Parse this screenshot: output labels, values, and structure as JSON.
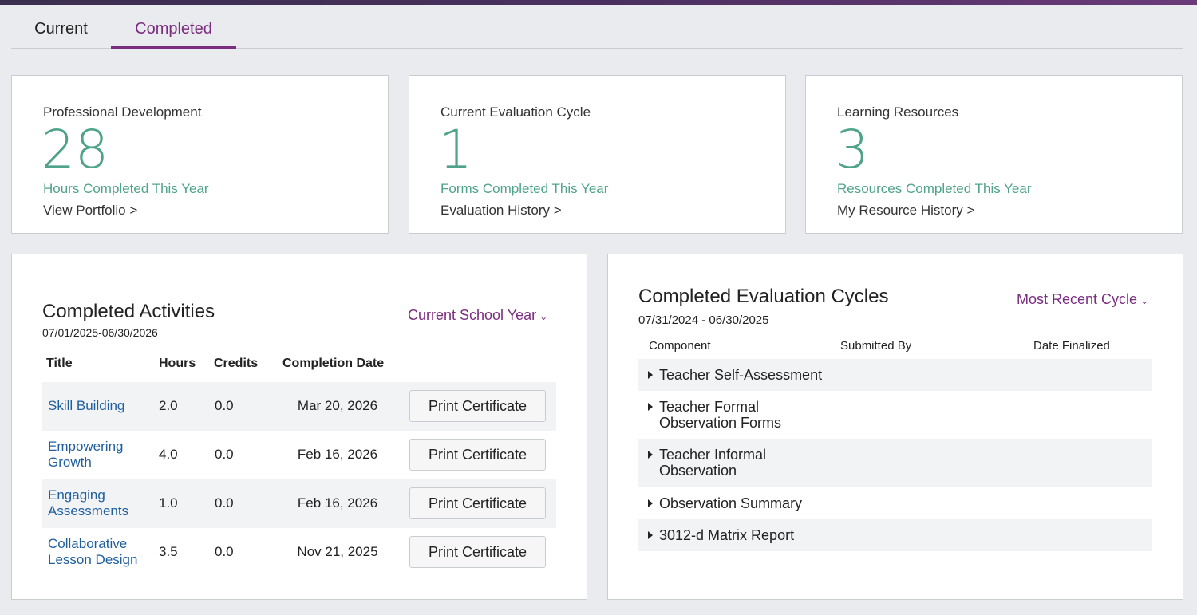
{
  "tabs": [
    {
      "label": "Current",
      "active": false
    },
    {
      "label": "Completed",
      "active": true
    }
  ],
  "stats": [
    {
      "label": "Professional Development",
      "value": "28",
      "sub": "Hours Completed This Year",
      "link": "View Portfolio >"
    },
    {
      "label": "Current Evaluation Cycle",
      "value": "1",
      "sub": "Forms Completed This Year",
      "link": "Evaluation History >"
    },
    {
      "label": "Learning Resources",
      "value": "3",
      "sub": "Resources Completed This Year",
      "link": "My Resource History >"
    }
  ],
  "activities": {
    "title": "Completed Activities",
    "date_range": "07/01/2025-06/30/2026",
    "filter": "Current School Year",
    "columns": [
      "Title",
      "Hours",
      "Credits",
      "Completion Date"
    ],
    "button_label": "Print Certificate",
    "rows": [
      {
        "title": "Skill Building",
        "hours": "2.0",
        "credits": "0.0",
        "date": "Mar 20, 2026"
      },
      {
        "title": "Empowering Growth",
        "hours": "4.0",
        "credits": "0.0",
        "date": "Feb 16, 2026"
      },
      {
        "title": "Engaging Assessments",
        "hours": "1.0",
        "credits": "0.0",
        "date": "Feb 16, 2026"
      },
      {
        "title": "Collaborative Lesson Design",
        "hours": "3.5",
        "credits": "0.0",
        "date": "Nov 21, 2025"
      }
    ]
  },
  "evaluations": {
    "title": "Completed Evaluation Cycles",
    "date_range": "07/31/2024 - 06/30/2025",
    "filter": "Most Recent Cycle",
    "columns": [
      "Component",
      "Submitted By",
      "Date Finalized"
    ],
    "rows": [
      {
        "component": "Teacher Self-Assessment"
      },
      {
        "component": "Teacher Formal Observation Forms"
      },
      {
        "component": "Teacher Informal Observation"
      },
      {
        "component": "Observation Summary"
      },
      {
        "component": "3012-d Matrix Report"
      }
    ]
  },
  "colors": {
    "accent": "#7b2d7f",
    "stat_green": "#4ea38a",
    "link_blue": "#1f5f9e"
  },
  "icons": {
    "dropdown": "chevron-down-icon",
    "expand": "triangle-right-icon"
  }
}
